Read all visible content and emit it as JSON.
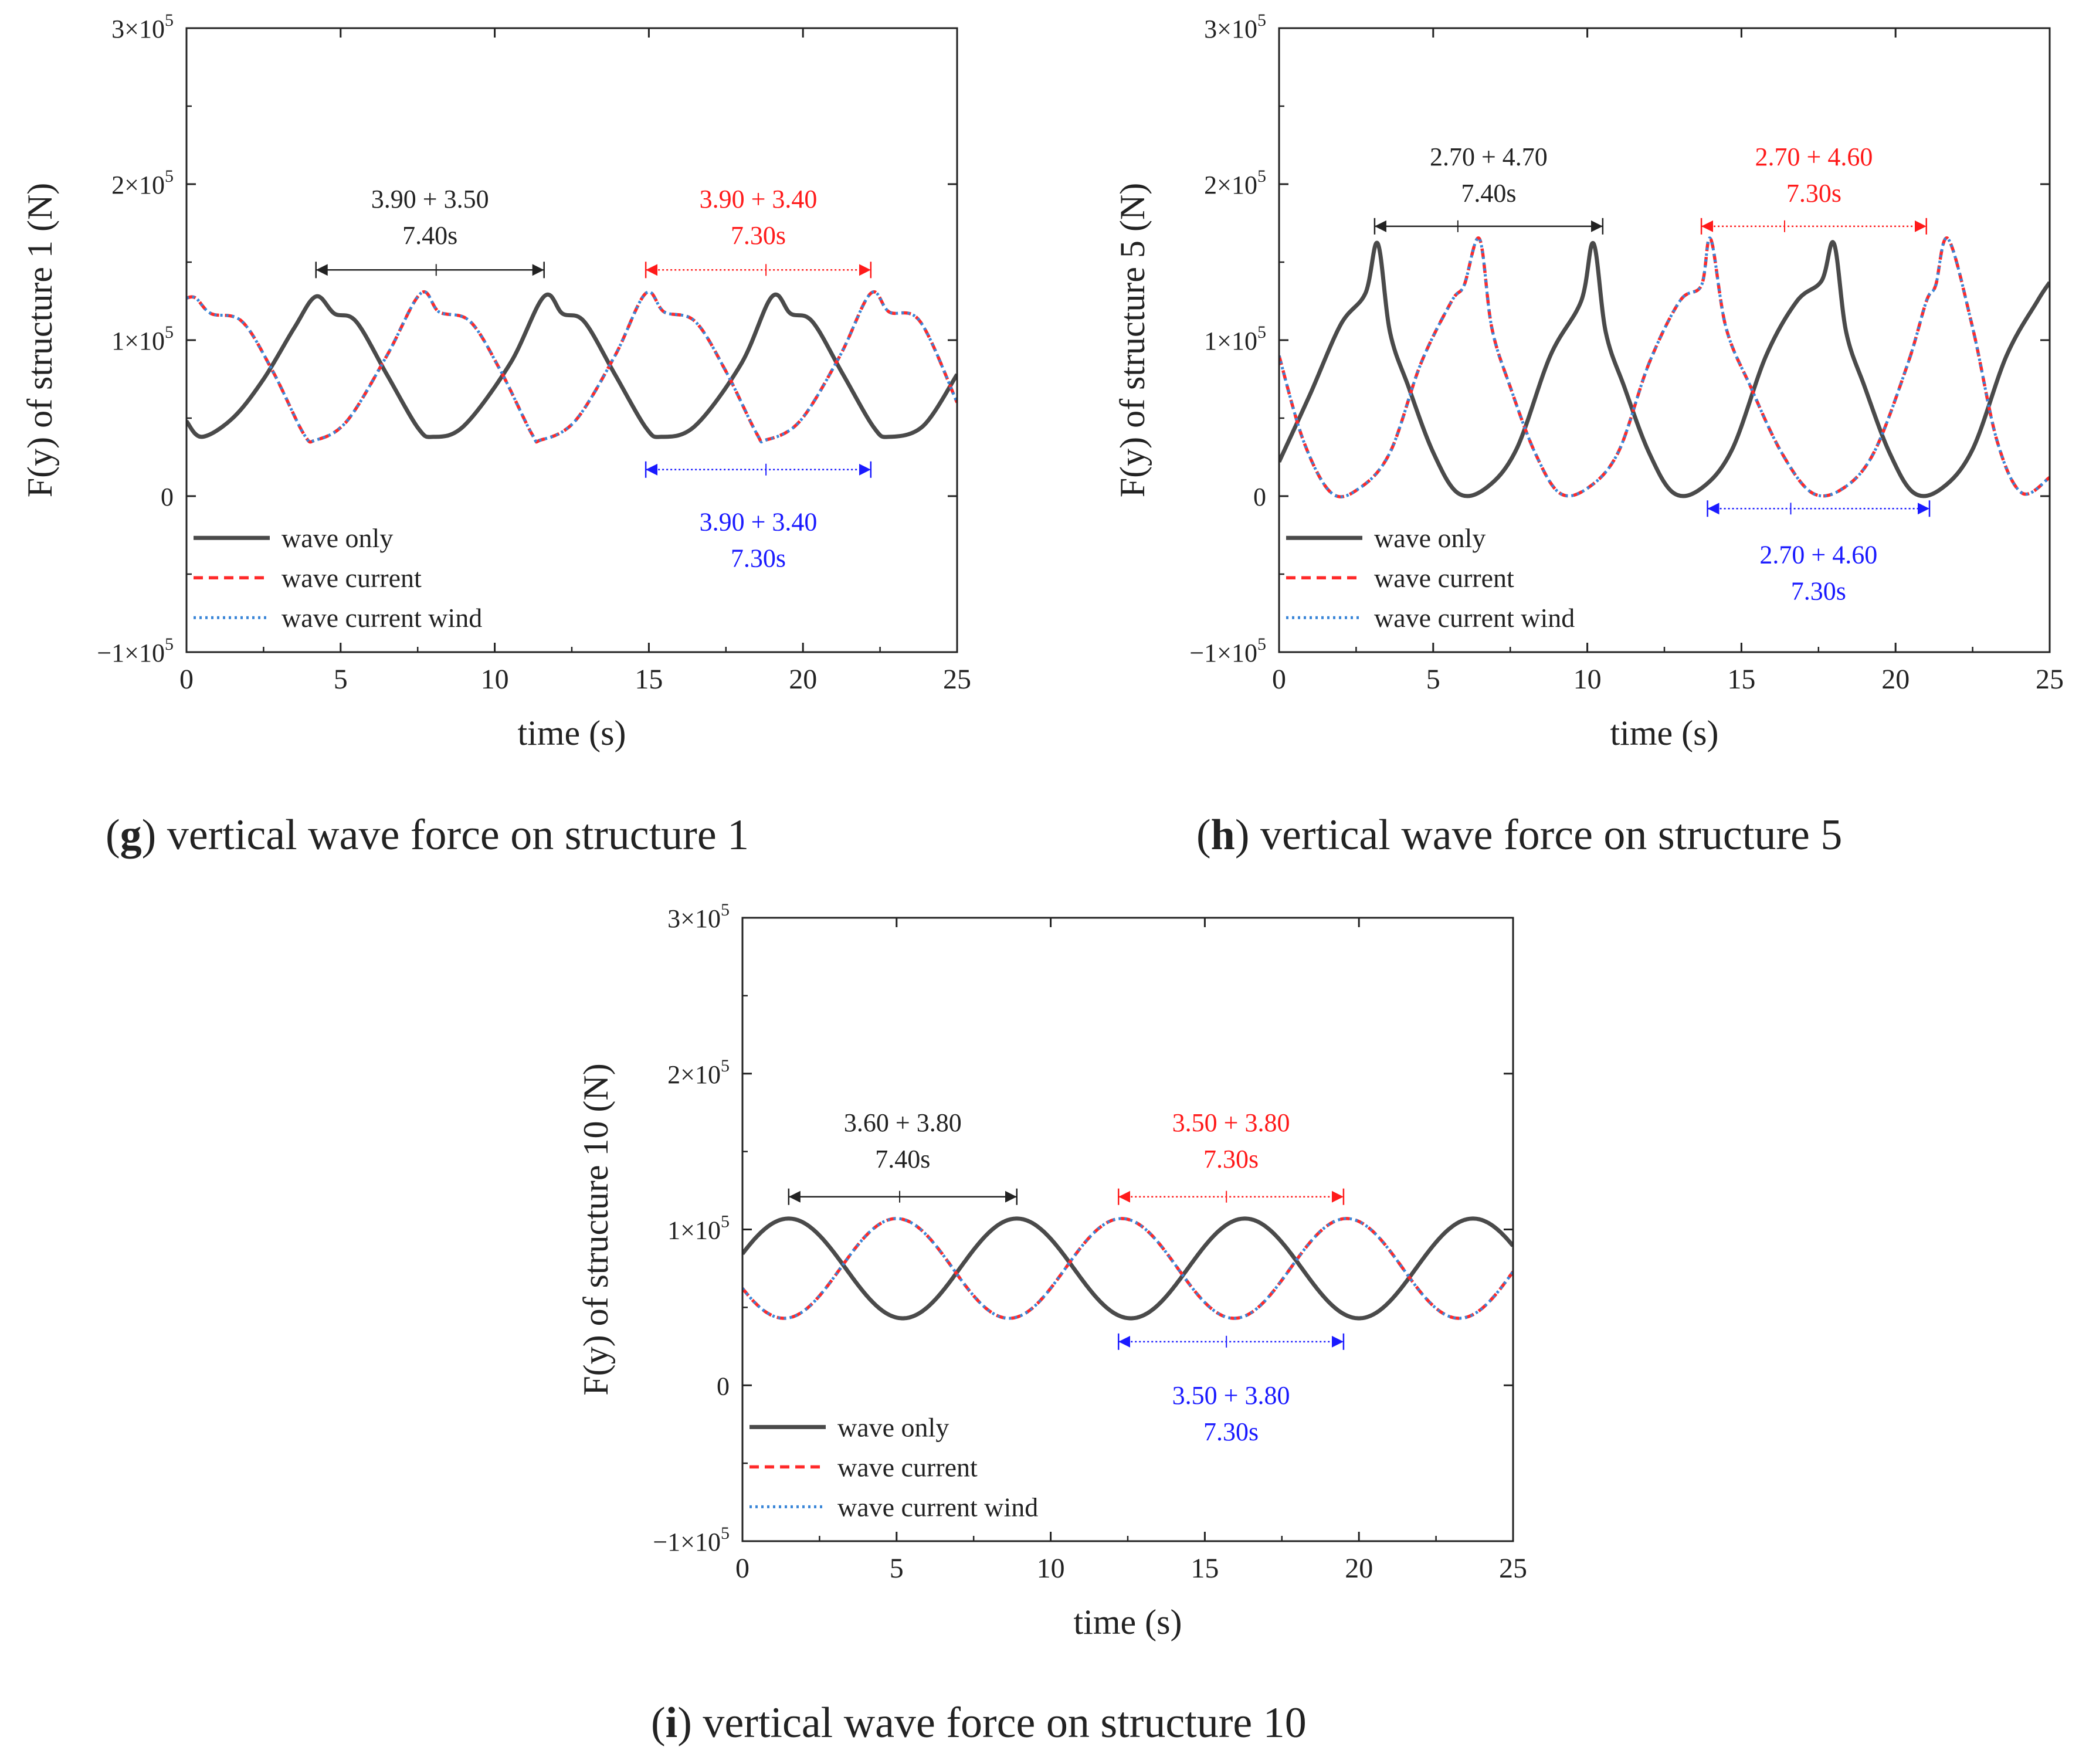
{
  "figure": {
    "captions": [
      {
        "letter": "g",
        "text": " vertical wave force on structure 1"
      },
      {
        "letter": "h",
        "text": " vertical wave force on structure 5"
      },
      {
        "letter": "i",
        "text": " vertical wave force on structure 10"
      }
    ]
  },
  "colors": {
    "wave_only": "#4a4a4a",
    "wave_current": "#ff2a2a",
    "wave_current_wind": "#3a86d8",
    "annotation_black": "#222222",
    "annotation_red": "#ff1a1a",
    "annotation_blue": "#1a1aff"
  },
  "chart_data": [
    {
      "id": "g",
      "type": "line",
      "xlabel": "time (s)",
      "ylabel": "F(y) of structure 1 (N)",
      "xlim": [
        0,
        25
      ],
      "ylim": [
        -100000,
        300000
      ],
      "xticks": [
        0,
        5,
        10,
        15,
        20,
        25
      ],
      "xtick_labels": [
        "0",
        "5",
        "10",
        "15",
        "20",
        "25"
      ],
      "yticks": [
        -100000,
        0,
        100000,
        200000,
        300000
      ],
      "ytick_labels": [
        {
          "prefix": "−1×10",
          "exp": "5"
        },
        {
          "prefix": "0",
          "exp": ""
        },
        {
          "prefix": "1×10",
          "exp": "5"
        },
        {
          "prefix": "2×10",
          "exp": "5"
        },
        {
          "prefix": "3×10",
          "exp": "5"
        }
      ],
      "legend": [
        "wave only",
        "wave current",
        "wave current wind"
      ],
      "legend_position": "lower-left",
      "series": [
        {
          "name": "wave only",
          "style": "solid",
          "color_key": "wave_only",
          "x": [
            0,
            0.5,
            1.5,
            2.5,
            3.5,
            4.2,
            4.8,
            5.5,
            6.5,
            7.5,
            8.0,
            9.0,
            10.5,
            11.6,
            12.2,
            12.9,
            13.9,
            14.9,
            15.4,
            16.5,
            18.0,
            19.0,
            19.6,
            20.3,
            21.3,
            22.3,
            22.8,
            23.9,
            25
          ],
          "y": [
            48000,
            38000,
            50000,
            75000,
            108000,
            128000,
            117000,
            112000,
            78000,
            44000,
            38000,
            45000,
            85000,
            128000,
            117000,
            112000,
            78000,
            44000,
            38000,
            45000,
            85000,
            128000,
            117000,
            112000,
            78000,
            44000,
            38000,
            45000,
            78000
          ]
        },
        {
          "name": "wave current",
          "style": "dashed",
          "color_key": "wave_current",
          "x": [
            0,
            0.3,
            0.8,
            1.8,
            2.8,
            3.8,
            4.2,
            5.2,
            6.5,
            7.6,
            8.2,
            9.2,
            10.2,
            11.2,
            11.5,
            12.6,
            13.9,
            14.9,
            15.5,
            16.5,
            17.5,
            18.5,
            18.8,
            19.9,
            21.2,
            22.2,
            22.8,
            23.8,
            25
          ],
          "y": [
            127000,
            127000,
            117000,
            112000,
            80000,
            40000,
            36000,
            48000,
            90000,
            130000,
            118000,
            112000,
            80000,
            40000,
            36000,
            48000,
            90000,
            130000,
            118000,
            112000,
            80000,
            40000,
            36000,
            48000,
            90000,
            130000,
            118000,
            112000,
            60000
          ]
        },
        {
          "name": "wave current wind",
          "style": "dotted",
          "color_key": "wave_current_wind",
          "same_as": "wave current"
        }
      ],
      "annotations": [
        {
          "lines": [
            "3.90 + 3.50",
            "7.40s"
          ],
          "color_key": "annotation_black",
          "x1": 4.2,
          "xm": 8.1,
          "x2": 11.6,
          "y": 145000,
          "style": "solid",
          "text_y": 185000
        },
        {
          "lines": [
            "3.90 + 3.40",
            "7.30s"
          ],
          "color_key": "annotation_red",
          "x1": 14.9,
          "xm": 18.8,
          "x2": 22.2,
          "y": 145000,
          "style": "dotted",
          "text_y": 185000
        },
        {
          "lines": [
            "3.90 + 3.40",
            "7.30s"
          ],
          "color_key": "annotation_blue",
          "x1": 14.9,
          "xm": 18.8,
          "x2": 22.2,
          "y": 17000,
          "style": "dotted",
          "text_y": -22000
        }
      ]
    },
    {
      "id": "h",
      "type": "line",
      "xlabel": "time (s)",
      "ylabel": "F(y) of structure 5 (N)",
      "xlim": [
        0,
        25
      ],
      "ylim": [
        -100000,
        300000
      ],
      "xticks": [
        0,
        5,
        10,
        15,
        20,
        25
      ],
      "xtick_labels": [
        "0",
        "5",
        "10",
        "15",
        "20",
        "25"
      ],
      "yticks": [
        -100000,
        0,
        100000,
        200000,
        300000
      ],
      "ytick_labels": [
        {
          "prefix": "−1×10",
          "exp": "5"
        },
        {
          "prefix": "0",
          "exp": ""
        },
        {
          "prefix": "1×10",
          "exp": "5"
        },
        {
          "prefix": "2×10",
          "exp": "5"
        },
        {
          "prefix": "3×10",
          "exp": "5"
        }
      ],
      "legend": [
        "wave only",
        "wave current",
        "wave current wind"
      ],
      "legend_position": "lower-left",
      "series": [
        {
          "name": "wave only",
          "style": "solid",
          "color_key": "wave_only",
          "x": [
            0,
            1.0,
            2.0,
            2.8,
            3.2,
            3.6,
            4.2,
            5.0,
            5.8,
            6.7,
            7.7,
            8.8,
            9.8,
            10.2,
            10.6,
            11.2,
            12.0,
            12.8,
            13.7,
            14.7,
            15.8,
            16.8,
            17.6,
            18.0,
            18.4,
            19.0,
            19.8,
            20.6,
            21.5,
            22.5,
            23.6,
            24.6,
            25
          ],
          "y": [
            22000,
            65000,
            110000,
            130000,
            162000,
            105000,
            70000,
            28000,
            2000,
            5000,
            30000,
            90000,
            125000,
            162000,
            105000,
            70000,
            28000,
            2000,
            5000,
            30000,
            90000,
            125000,
            138000,
            162000,
            105000,
            70000,
            28000,
            2000,
            5000,
            30000,
            90000,
            125000,
            137000
          ]
        },
        {
          "name": "wave current",
          "style": "dashed",
          "color_key": "wave_current",
          "x": [
            0,
            0.8,
            1.7,
            2.6,
            3.6,
            4.6,
            5.6,
            6.0,
            6.5,
            6.9,
            7.5,
            8.3,
            9.1,
            10.0,
            11.0,
            12.0,
            13.0,
            13.7,
            14.0,
            14.5,
            15.3,
            16.3,
            17.3,
            18.3,
            19.3,
            20.4,
            21.0,
            21.3,
            21.7,
            22.5,
            23.3,
            24.1,
            25
          ],
          "y": [
            90000,
            35000,
            2000,
            5000,
            28000,
            85000,
            125000,
            135000,
            165000,
            108000,
            70000,
            28000,
            2000,
            5000,
            28000,
            85000,
            125000,
            135000,
            165000,
            108000,
            70000,
            28000,
            2000,
            5000,
            28000,
            85000,
            125000,
            135000,
            165000,
            108000,
            35000,
            2000,
            12000
          ]
        },
        {
          "name": "wave current wind",
          "style": "dotted",
          "color_key": "wave_current_wind",
          "same_as": "wave current"
        }
      ],
      "annotations": [
        {
          "lines": [
            "2.70 + 4.70",
            "7.40s"
          ],
          "color_key": "annotation_black",
          "x1": 3.1,
          "xm": 5.8,
          "x2": 10.5,
          "y": 173000,
          "style": "solid",
          "text_y": 212000
        },
        {
          "lines": [
            "2.70 + 4.60",
            "7.30s"
          ],
          "color_key": "annotation_red",
          "x1": 13.7,
          "xm": 16.4,
          "x2": 21.0,
          "y": 173000,
          "style": "dotted",
          "text_y": 212000
        },
        {
          "lines": [
            "2.70 + 4.60",
            "7.30s"
          ],
          "color_key": "annotation_blue",
          "x1": 13.9,
          "xm": 16.6,
          "x2": 21.1,
          "y": -8000,
          "style": "dotted",
          "text_y": -43000
        }
      ]
    },
    {
      "id": "i",
      "type": "line",
      "xlabel": "time (s)",
      "ylabel": "F(y) of structure 10 (N)",
      "xlim": [
        0,
        25
      ],
      "ylim": [
        -100000,
        300000
      ],
      "xticks": [
        0,
        5,
        10,
        15,
        20,
        25
      ],
      "xtick_labels": [
        "0",
        "5",
        "10",
        "15",
        "20",
        "25"
      ],
      "yticks": [
        -100000,
        0,
        100000,
        200000,
        300000
      ],
      "ytick_labels": [
        {
          "prefix": "−1×10",
          "exp": "5"
        },
        {
          "prefix": "0",
          "exp": ""
        },
        {
          "prefix": "1×10",
          "exp": "5"
        },
        {
          "prefix": "2×10",
          "exp": "5"
        },
        {
          "prefix": "3×10",
          "exp": "5"
        }
      ],
      "legend": [
        "wave only",
        "wave current",
        "wave current wind"
      ],
      "legend_position": "lower-left",
      "series": [
        {
          "name": "wave only",
          "style": "sine",
          "color_key": "wave_only",
          "mean": 75000,
          "amp": 32000,
          "period": 7.4,
          "peak_t": 1.5,
          "t_start": 0,
          "t_end": 25
        },
        {
          "name": "wave current",
          "style": "dashed-sine",
          "color_key": "wave_current",
          "mean": 75000,
          "amp": 32000,
          "period": 7.3,
          "peak_t": 5.0,
          "t_start": 0,
          "t_end": 25
        },
        {
          "name": "wave current wind",
          "style": "dotted-sine",
          "color_key": "wave_current_wind",
          "same_as": "wave current"
        }
      ],
      "annotations": [
        {
          "lines": [
            "3.60 + 3.80",
            "7.40s"
          ],
          "color_key": "annotation_black",
          "x1": 1.5,
          "xm": 5.1,
          "x2": 8.9,
          "y": 121000,
          "style": "solid",
          "text_y": 163000
        },
        {
          "lines": [
            "3.50 + 3.80",
            "7.30s"
          ],
          "color_key": "annotation_red",
          "x1": 12.2,
          "xm": 15.7,
          "x2": 19.5,
          "y": 121000,
          "style": "dotted",
          "text_y": 163000
        },
        {
          "lines": [
            "3.50 + 3.80",
            "7.30s"
          ],
          "color_key": "annotation_blue",
          "x1": 12.2,
          "xm": 15.7,
          "x2": 19.5,
          "y": 28000,
          "style": "dotted",
          "text_y": -12000
        }
      ]
    }
  ]
}
